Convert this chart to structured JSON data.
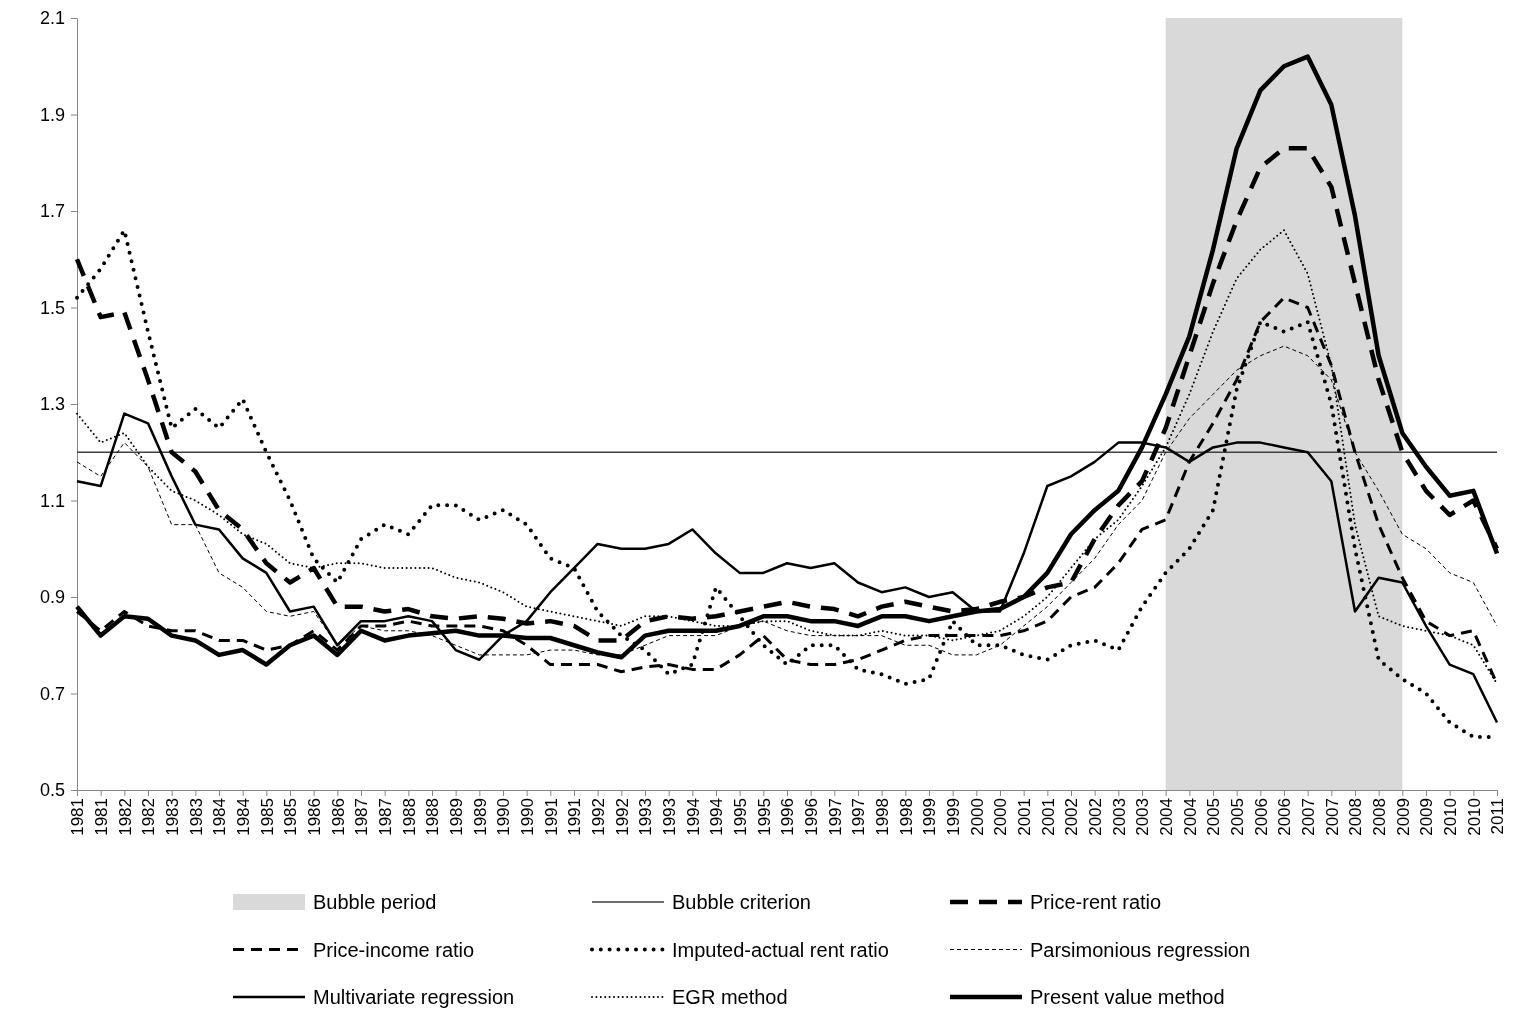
{
  "chart_data": {
    "type": "line",
    "categories": [
      "1981",
      "1981",
      "1982",
      "1982",
      "1983",
      "1983",
      "1984",
      "1984",
      "1985",
      "1985",
      "1986",
      "1986",
      "1987",
      "1987",
      "1988",
      "1988",
      "1989",
      "1989",
      "1990",
      "1990",
      "1991",
      "1991",
      "1992",
      "1992",
      "1993",
      "1993",
      "1994",
      "1994",
      "1995",
      "1995",
      "1996",
      "1996",
      "1997",
      "1997",
      "1998",
      "1998",
      "1999",
      "1999",
      "2000",
      "2000",
      "2001",
      "2001",
      "2002",
      "2002",
      "2003",
      "2003",
      "2004",
      "2004",
      "2005",
      "2005",
      "2006",
      "2006",
      "2007",
      "2007",
      "2008",
      "2008",
      "2009",
      "2009",
      "2010",
      "2010",
      "2011"
    ],
    "ylim": [
      0.5,
      2.1
    ],
    "yticks": [
      0.5,
      0.7,
      0.9,
      1.1,
      1.3,
      1.5,
      1.7,
      1.9,
      2.1
    ],
    "grid": false,
    "legend": "bottom",
    "bands": [
      {
        "axis": "x",
        "from": "2004",
        "to": "2009",
        "label": "Bubble period",
        "color": "#d9d9d9"
      }
    ],
    "ref_lines": [
      {
        "axis": "y",
        "value": 1.2,
        "label": "Bubble criterion",
        "color": "#404040",
        "line_style": "solid"
      }
    ],
    "series": [
      {
        "name": "Price-rent ratio",
        "color": "#000000",
        "line_style": "dashed",
        "values": [
          1.6,
          1.48,
          1.49,
          1.35,
          1.2,
          1.16,
          1.08,
          1.04,
          0.97,
          0.93,
          0.96,
          0.88,
          0.88,
          0.87,
          0.875,
          0.86,
          0.855,
          0.86,
          0.855,
          0.845,
          0.85,
          0.84,
          0.81,
          0.81,
          0.85,
          0.86,
          0.855,
          0.86,
          0.87,
          0.88,
          0.89,
          0.88,
          0.875,
          0.86,
          0.88,
          0.89,
          0.88,
          0.87,
          0.875,
          0.89,
          0.9,
          0.92,
          0.93,
          1.02,
          1.09,
          1.14,
          1.25,
          1.4,
          1.55,
          1.68,
          1.79,
          1.83,
          1.83,
          1.75,
          1.55,
          1.35,
          1.2,
          1.12,
          1.07,
          1.1,
          1.0
        ]
      },
      {
        "name": "Price-income ratio",
        "color": "#000000",
        "line_style": "dashed",
        "values": [
          0.87,
          0.83,
          0.87,
          0.84,
          0.83,
          0.83,
          0.81,
          0.81,
          0.79,
          0.8,
          0.83,
          0.79,
          0.84,
          0.84,
          0.85,
          0.84,
          0.84,
          0.84,
          0.83,
          0.8,
          0.76,
          0.76,
          0.76,
          0.745,
          0.755,
          0.76,
          0.75,
          0.75,
          0.78,
          0.82,
          0.77,
          0.76,
          0.76,
          0.77,
          0.79,
          0.81,
          0.82,
          0.82,
          0.82,
          0.82,
          0.83,
          0.85,
          0.9,
          0.92,
          0.97,
          1.04,
          1.06,
          1.18,
          1.26,
          1.35,
          1.47,
          1.52,
          1.5,
          1.38,
          1.2,
          1.05,
          0.94,
          0.85,
          0.82,
          0.83,
          0.72
        ]
      },
      {
        "name": "Imputed-actual rent ratio",
        "color": "#000000",
        "line_style": "dotted",
        "values": [
          1.52,
          1.58,
          1.66,
          1.45,
          1.25,
          1.29,
          1.25,
          1.31,
          1.2,
          1.1,
          0.98,
          0.93,
          1.02,
          1.05,
          1.03,
          1.09,
          1.09,
          1.06,
          1.08,
          1.05,
          0.98,
          0.96,
          0.87,
          0.82,
          0.79,
          0.74,
          0.76,
          0.92,
          0.86,
          0.8,
          0.76,
          0.8,
          0.8,
          0.75,
          0.74,
          0.72,
          0.73,
          0.85,
          0.8,
          0.8,
          0.78,
          0.77,
          0.8,
          0.81,
          0.79,
          0.88,
          0.95,
          1.0,
          1.08,
          1.33,
          1.47,
          1.45,
          1.47,
          1.3,
          1.0,
          0.77,
          0.73,
          0.7,
          0.64,
          0.61,
          0.61
        ]
      },
      {
        "name": "Parsimonious regression",
        "color": "#000000",
        "line_style": "dashed",
        "values": [
          1.18,
          1.15,
          1.22,
          1.17,
          1.05,
          1.05,
          0.95,
          0.92,
          0.87,
          0.86,
          0.87,
          0.8,
          0.84,
          0.83,
          0.83,
          0.82,
          0.8,
          0.78,
          0.78,
          0.78,
          0.79,
          0.79,
          0.78,
          0.78,
          0.8,
          0.82,
          0.82,
          0.82,
          0.84,
          0.85,
          0.83,
          0.82,
          0.82,
          0.82,
          0.82,
          0.8,
          0.8,
          0.78,
          0.78,
          0.8,
          0.84,
          0.88,
          0.93,
          0.98,
          1.05,
          1.1,
          1.2,
          1.27,
          1.32,
          1.37,
          1.4,
          1.42,
          1.4,
          1.35,
          1.2,
          1.12,
          1.03,
          1.0,
          0.95,
          0.93,
          0.84
        ]
      },
      {
        "name": "Multivariate regression",
        "color": "#000000",
        "line_style": "solid",
        "values": [
          1.14,
          1.13,
          1.28,
          1.26,
          1.15,
          1.05,
          1.04,
          0.98,
          0.95,
          0.87,
          0.88,
          0.8,
          0.85,
          0.85,
          0.86,
          0.85,
          0.79,
          0.77,
          0.82,
          0.85,
          0.91,
          0.96,
          1.01,
          1.0,
          1.0,
          1.01,
          1.04,
          0.99,
          0.95,
          0.95,
          0.97,
          0.96,
          0.97,
          0.93,
          0.91,
          0.92,
          0.9,
          0.91,
          0.87,
          0.87,
          0.99,
          1.13,
          1.15,
          1.18,
          1.22,
          1.22,
          1.21,
          1.18,
          1.21,
          1.22,
          1.22,
          1.21,
          1.2,
          1.14,
          0.87,
          0.94,
          0.93,
          0.84,
          0.76,
          0.74,
          0.64
        ]
      },
      {
        "name": "EGR method",
        "color": "#000000",
        "line_style": "dotted",
        "values": [
          1.28,
          1.22,
          1.24,
          1.17,
          1.12,
          1.1,
          1.07,
          1.03,
          1.01,
          0.97,
          0.96,
          0.97,
          0.97,
          0.96,
          0.96,
          0.96,
          0.94,
          0.93,
          0.91,
          0.88,
          0.87,
          0.86,
          0.85,
          0.84,
          0.86,
          0.86,
          0.85,
          0.84,
          0.84,
          0.85,
          0.85,
          0.83,
          0.82,
          0.82,
          0.83,
          0.82,
          0.82,
          0.81,
          0.82,
          0.83,
          0.86,
          0.9,
          0.96,
          1.02,
          1.06,
          1.13,
          1.21,
          1.32,
          1.45,
          1.56,
          1.62,
          1.66,
          1.57,
          1.38,
          1.05,
          0.86,
          0.84,
          0.83,
          0.82,
          0.8,
          0.72
        ]
      },
      {
        "name": "Present value method",
        "color": "#000000",
        "line_style": "solid",
        "values": [
          0.88,
          0.82,
          0.86,
          0.855,
          0.82,
          0.81,
          0.78,
          0.79,
          0.76,
          0.8,
          0.82,
          0.78,
          0.83,
          0.81,
          0.82,
          0.825,
          0.83,
          0.82,
          0.82,
          0.815,
          0.815,
          0.8,
          0.785,
          0.775,
          0.82,
          0.83,
          0.83,
          0.83,
          0.84,
          0.86,
          0.86,
          0.85,
          0.85,
          0.84,
          0.86,
          0.86,
          0.85,
          0.86,
          0.87,
          0.875,
          0.9,
          0.95,
          1.03,
          1.08,
          1.12,
          1.21,
          1.32,
          1.44,
          1.62,
          1.83,
          1.95,
          2.0,
          2.02,
          1.92,
          1.69,
          1.4,
          1.24,
          1.17,
          1.11,
          1.12,
          0.99
        ]
      }
    ]
  }
}
